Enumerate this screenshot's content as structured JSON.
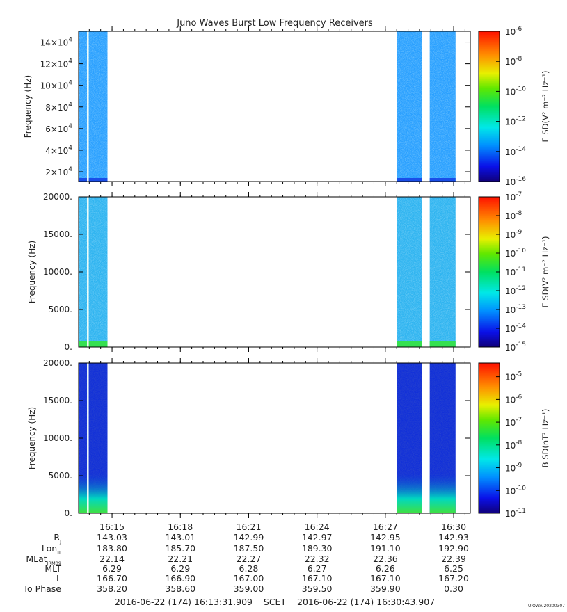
{
  "chart_data": {
    "type": "heatmap",
    "title": "Juno Waves Burst Low Frequency Receivers",
    "x_ticks": [
      "16:15",
      "16:18",
      "16:21",
      "16:24",
      "16:27",
      "16:30"
    ],
    "data_segments_hhmm": [
      [
        "16:13:32",
        "16:14:48"
      ],
      [
        "16:27:30",
        "16:28:36"
      ],
      [
        "16:28:57",
        "16:30:05"
      ]
    ],
    "panels": [
      {
        "ylabel": "Frequency (Hz)",
        "yticks": [
          [
            "2",
            "4"
          ],
          [
            "4",
            "4"
          ],
          [
            "6",
            "4"
          ],
          [
            "8",
            "4"
          ],
          [
            "10",
            "4"
          ],
          [
            "12",
            "4"
          ],
          [
            "14",
            "4"
          ]
        ],
        "ylim": [
          11000,
          150000
        ],
        "cbar_label": "E SD(V² m⁻² Hz⁻¹)",
        "cbar_ticks": [
          "-6",
          "-8",
          "-10",
          "-12",
          "-14",
          "-16"
        ],
        "cbar_range_log10": [
          -16,
          -6
        ],
        "background_color": "#2aa0ff",
        "low_band_color": "#1a4ee8"
      },
      {
        "ylabel": "Frequency (Hz)",
        "yticks": [
          "20000.",
          "15000.",
          "10000.",
          "5000.",
          "0."
        ],
        "ylim": [
          0,
          20000
        ],
        "cbar_label": "E SD(V² m⁻² Hz⁻¹)",
        "cbar_ticks": [
          "-7",
          "-8",
          "-9",
          "-10",
          "-11",
          "-12",
          "-13",
          "-14",
          "-15"
        ],
        "cbar_range_log10": [
          -15,
          -7
        ],
        "background_color": "#2fb4f0",
        "low_band_color": "#35e050"
      },
      {
        "ylabel": "Frequency (Hz)",
        "yticks": [
          "20000.",
          "15000.",
          "10000.",
          "5000.",
          "0."
        ],
        "ylim": [
          0,
          20000
        ],
        "cbar_label": "B SD(nT² Hz⁻¹)",
        "cbar_ticks": [
          "-5",
          "-6",
          "-7",
          "-8",
          "-9",
          "-10",
          "-11"
        ],
        "cbar_range_log10": [
          -11,
          -4.4
        ],
        "background_color": "#1230d8",
        "low_band_color": "#35e050"
      }
    ],
    "ephemeris": {
      "labels": [
        "R",
        "Lon",
        "MLat",
        "MLT",
        "L",
        "Io Phase"
      ],
      "label_subscripts": [
        "J",
        "III",
        "JRM09",
        "",
        "",
        ""
      ],
      "rows": [
        [
          "143.03",
          "143.01",
          "142.99",
          "142.97",
          "142.95",
          "142.93"
        ],
        [
          "183.80",
          "185.70",
          "187.50",
          "189.30",
          "191.10",
          "192.90"
        ],
        [
          "22.14",
          "22.21",
          "22.27",
          "22.32",
          "22.36",
          "22.39"
        ],
        [
          "6.29",
          "6.29",
          "6.28",
          "6.27",
          "6.26",
          "6.25"
        ],
        [
          "166.70",
          "166.90",
          "167.00",
          "167.10",
          "167.10",
          "167.20"
        ],
        [
          "358.20",
          "358.60",
          "359.00",
          "359.50",
          "359.90",
          "0.30"
        ]
      ]
    },
    "footer": "2016-06-22 (174) 16:13:31.909    SCET    2016-06-22 (174) 16:30:43.907",
    "credit": "UIOWA 20200307"
  }
}
